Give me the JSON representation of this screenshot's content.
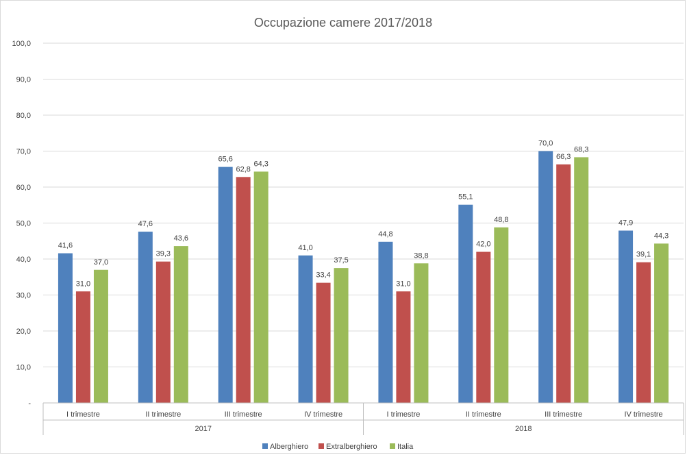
{
  "chart_data": {
    "type": "bar",
    "title": "Occupazione camere 2017/2018",
    "xlabel": "",
    "ylabel": "",
    "ylim": [
      0,
      100
    ],
    "y_ticks": [
      "-",
      "10,0",
      "20,0",
      "30,0",
      "40,0",
      "50,0",
      "60,0",
      "70,0",
      "80,0",
      "90,0",
      "100,0"
    ],
    "grid": true,
    "legend_position": "bottom",
    "groups": [
      {
        "label": "2017",
        "categories": [
          "I trimestre",
          "II trimestre",
          "III trimestre",
          "IV trimestre"
        ]
      },
      {
        "label": "2018",
        "categories": [
          "I trimestre",
          "II trimestre",
          "III trimestre",
          "IV trimestre"
        ]
      }
    ],
    "categories": [
      "I trimestre",
      "II trimestre",
      "III trimestre",
      "IV trimestre",
      "I trimestre",
      "II trimestre",
      "III trimestre",
      "IV trimestre"
    ],
    "series": [
      {
        "name": "Alberghiero",
        "color": "#4f81bd",
        "values": [
          41.6,
          47.6,
          65.6,
          41.0,
          44.8,
          55.1,
          70.0,
          47.9
        ],
        "labels": [
          "41,6",
          "47,6",
          "65,6",
          "41,0",
          "44,8",
          "55,1",
          "70,0",
          "47,9"
        ]
      },
      {
        "name": "Extralberghiero",
        "color": "#c0504d",
        "values": [
          31.0,
          39.3,
          62.8,
          33.4,
          31.0,
          42.0,
          66.3,
          39.1
        ],
        "labels": [
          "31,0",
          "39,3",
          "62,8",
          "33,4",
          "31,0",
          "42,0",
          "66,3",
          "39,1"
        ]
      },
      {
        "name": "Italia",
        "color": "#9bbb59",
        "values": [
          37.0,
          43.6,
          64.3,
          37.5,
          38.8,
          48.8,
          68.3,
          44.3
        ],
        "labels": [
          "37,0",
          "43,6",
          "64,3",
          "37,5",
          "38,8",
          "48,8",
          "68,3",
          "44,3"
        ]
      }
    ]
  }
}
